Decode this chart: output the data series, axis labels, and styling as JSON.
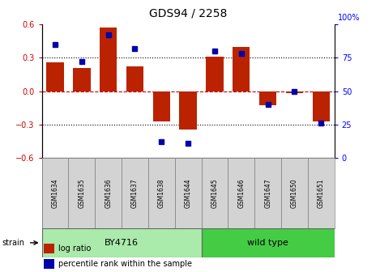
{
  "title": "GDS94 / 2258",
  "samples": [
    "GSM1634",
    "GSM1635",
    "GSM1636",
    "GSM1637",
    "GSM1638",
    "GSM1644",
    "GSM1645",
    "GSM1646",
    "GSM1647",
    "GSM1650",
    "GSM1651"
  ],
  "log_ratios": [
    0.26,
    0.21,
    0.575,
    0.22,
    -0.27,
    -0.345,
    0.31,
    0.4,
    -0.13,
    -0.02,
    -0.27
  ],
  "percentile_ranks": [
    85,
    72,
    92,
    82,
    12,
    11,
    80,
    78,
    40,
    50,
    26
  ],
  "groups": [
    {
      "label": "BY4716",
      "start": 0,
      "end": 6,
      "color": "#AAEAAA"
    },
    {
      "label": "wild type",
      "start": 6,
      "end": 11,
      "color": "#44CC44"
    }
  ],
  "bar_color": "#BB2200",
  "dot_color": "#0000AA",
  "ylim_left": [
    -0.6,
    0.6
  ],
  "ylim_right": [
    0,
    100
  ],
  "yticks_left": [
    -0.6,
    -0.3,
    0,
    0.3,
    0.6
  ],
  "yticks_right": [
    0,
    25,
    50,
    75,
    100
  ],
  "hline_zero_color": "#CC0000",
  "hline_dotted_color": "#000000",
  "background_color": "#ffffff",
  "strain_label": "strain",
  "legend_log_ratio": "log ratio",
  "legend_percentile": "percentile rank within the sample",
  "title_fontsize": 10,
  "tick_fontsize": 7,
  "label_fontsize": 6,
  "legend_fontsize": 7
}
